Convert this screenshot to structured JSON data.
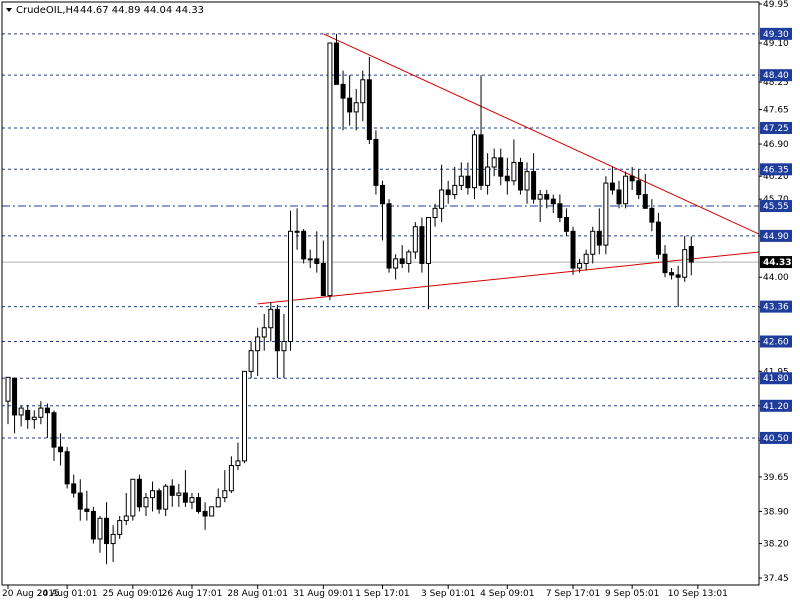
{
  "header": {
    "symbol": "CrudeOIL,H4",
    "ohlc": "44.67 44.89 44.04 44.33"
  },
  "chart_data": {
    "type": "candlestick",
    "ylim": [
      37.45,
      49.95
    ],
    "y_ticks": [
      "49.95",
      "49.10",
      "48.25",
      "47.65",
      "46.90",
      "46.20",
      "45.70",
      "44.90",
      "44.00",
      "43.35",
      "42.60",
      "41.95",
      "41.20",
      "40.45",
      "39.65",
      "38.90",
      "38.20",
      "37.45"
    ],
    "x_ticks": [
      "20 Aug 2015",
      "24 Aug 01:01",
      "25 Aug 09:01",
      "26 Aug 17:01",
      "28 Aug 01:01",
      "31 Aug 09:01",
      "1 Sep 17:01",
      "3 Sep 01:01",
      "4 Sep 09:01",
      "7 Sep 17:01",
      "9 Sep 05:01",
      "10 Sep 13:01"
    ],
    "x_tick_index": [
      0,
      9,
      19,
      28,
      38,
      48,
      57,
      67,
      76,
      86,
      95,
      105
    ],
    "levels": [
      {
        "value": 49.3,
        "label": "49.30",
        "style": "dashed"
      },
      {
        "value": 48.4,
        "label": "48.40",
        "style": "dashed"
      },
      {
        "value": 47.25,
        "label": "47.25",
        "style": "dashed"
      },
      {
        "value": 46.35,
        "label": "46.35",
        "style": "dashed"
      },
      {
        "value": 45.55,
        "label": "45.55",
        "style": "dashdot"
      },
      {
        "value": 44.9,
        "label": "44.90",
        "style": "dashed"
      },
      {
        "value": 43.36,
        "label": "43.36",
        "style": "dashed"
      },
      {
        "value": 42.6,
        "label": "42.60",
        "style": "dashed"
      },
      {
        "value": 41.8,
        "label": "41.80",
        "style": "dashed"
      },
      {
        "value": 41.2,
        "label": "41.20",
        "style": "dashed"
      },
      {
        "value": 40.5,
        "label": "40.50",
        "style": "dashed"
      }
    ],
    "current_price": {
      "value": 44.33,
      "label": "44.33"
    },
    "trendlines": [
      {
        "name": "resistance",
        "from": {
          "index": 48,
          "value": 49.3
        },
        "to": {
          "index": 118,
          "value": 44.94
        }
      },
      {
        "name": "support",
        "from": {
          "index": 38,
          "value": 43.42
        },
        "to": {
          "index": 118,
          "value": 44.55
        }
      }
    ],
    "candles": [
      {
        "o": 41.3,
        "h": 41.82,
        "l": 40.8,
        "c": 41.82
      },
      {
        "o": 41.8,
        "h": 41.82,
        "l": 40.6,
        "c": 41.0
      },
      {
        "o": 41.0,
        "h": 41.2,
        "l": 40.75,
        "c": 41.15
      },
      {
        "o": 41.1,
        "h": 41.22,
        "l": 40.7,
        "c": 40.9
      },
      {
        "o": 40.9,
        "h": 41.1,
        "l": 40.7,
        "c": 40.95
      },
      {
        "o": 40.95,
        "h": 41.3,
        "l": 40.8,
        "c": 41.15
      },
      {
        "o": 41.15,
        "h": 41.25,
        "l": 40.5,
        "c": 41.05
      },
      {
        "o": 41.05,
        "h": 41.1,
        "l": 40.0,
        "c": 40.3
      },
      {
        "o": 40.3,
        "h": 40.6,
        "l": 39.9,
        "c": 40.2
      },
      {
        "o": 40.2,
        "h": 40.3,
        "l": 39.4,
        "c": 39.5
      },
      {
        "o": 39.5,
        "h": 39.7,
        "l": 39.2,
        "c": 39.3
      },
      {
        "o": 39.3,
        "h": 39.6,
        "l": 38.7,
        "c": 38.95
      },
      {
        "o": 38.95,
        "h": 39.35,
        "l": 38.7,
        "c": 38.9
      },
      {
        "o": 38.9,
        "h": 39.0,
        "l": 38.2,
        "c": 38.3
      },
      {
        "o": 38.3,
        "h": 38.8,
        "l": 38.0,
        "c": 38.75
      },
      {
        "o": 38.75,
        "h": 39.1,
        "l": 37.75,
        "c": 38.2
      },
      {
        "o": 38.2,
        "h": 38.6,
        "l": 37.8,
        "c": 38.4
      },
      {
        "o": 38.4,
        "h": 38.8,
        "l": 38.3,
        "c": 38.7
      },
      {
        "o": 38.7,
        "h": 39.3,
        "l": 38.6,
        "c": 38.8
      },
      {
        "o": 38.8,
        "h": 39.6,
        "l": 38.7,
        "c": 39.6
      },
      {
        "o": 39.6,
        "h": 39.7,
        "l": 38.9,
        "c": 39.0
      },
      {
        "o": 39.0,
        "h": 39.3,
        "l": 38.8,
        "c": 39.2
      },
      {
        "o": 39.2,
        "h": 39.55,
        "l": 38.9,
        "c": 39.35
      },
      {
        "o": 39.35,
        "h": 39.4,
        "l": 38.85,
        "c": 38.95
      },
      {
        "o": 38.95,
        "h": 39.5,
        "l": 38.8,
        "c": 39.45
      },
      {
        "o": 39.45,
        "h": 39.6,
        "l": 39.0,
        "c": 39.25
      },
      {
        "o": 39.25,
        "h": 39.5,
        "l": 39.0,
        "c": 39.3
      },
      {
        "o": 39.3,
        "h": 39.8,
        "l": 39.0,
        "c": 39.1
      },
      {
        "o": 39.1,
        "h": 39.3,
        "l": 38.95,
        "c": 39.2
      },
      {
        "o": 39.2,
        "h": 39.3,
        "l": 38.85,
        "c": 38.9
      },
      {
        "o": 38.9,
        "h": 39.1,
        "l": 38.5,
        "c": 38.8
      },
      {
        "o": 38.8,
        "h": 39.0,
        "l": 38.8,
        "c": 39.0
      },
      {
        "o": 39.0,
        "h": 39.4,
        "l": 39.0,
        "c": 39.2
      },
      {
        "o": 39.2,
        "h": 39.8,
        "l": 39.1,
        "c": 39.35
      },
      {
        "o": 39.35,
        "h": 40.1,
        "l": 39.3,
        "c": 39.9
      },
      {
        "o": 39.9,
        "h": 40.4,
        "l": 39.8,
        "c": 40.0
      },
      {
        "o": 40.0,
        "h": 41.95,
        "l": 39.95,
        "c": 41.95
      },
      {
        "o": 41.95,
        "h": 42.6,
        "l": 41.8,
        "c": 42.4
      },
      {
        "o": 42.4,
        "h": 42.9,
        "l": 41.85,
        "c": 42.7
      },
      {
        "o": 42.7,
        "h": 43.2,
        "l": 42.4,
        "c": 42.9
      },
      {
        "o": 42.9,
        "h": 43.45,
        "l": 42.6,
        "c": 43.3
      },
      {
        "o": 43.3,
        "h": 43.4,
        "l": 41.8,
        "c": 42.4
      },
      {
        "o": 42.4,
        "h": 43.2,
        "l": 41.8,
        "c": 42.6
      },
      {
        "o": 42.6,
        "h": 45.45,
        "l": 42.4,
        "c": 45.0
      },
      {
        "o": 45.0,
        "h": 45.5,
        "l": 44.6,
        "c": 45.0
      },
      {
        "o": 45.0,
        "h": 45.05,
        "l": 44.3,
        "c": 44.4
      },
      {
        "o": 44.4,
        "h": 44.6,
        "l": 44.2,
        "c": 44.4
      },
      {
        "o": 44.4,
        "h": 45.0,
        "l": 44.1,
        "c": 44.3
      },
      {
        "o": 44.3,
        "h": 44.8,
        "l": 43.6,
        "c": 43.6
      },
      {
        "o": 43.6,
        "h": 49.1,
        "l": 43.5,
        "c": 49.1
      },
      {
        "o": 49.1,
        "h": 49.3,
        "l": 48.2,
        "c": 48.2
      },
      {
        "o": 48.2,
        "h": 48.5,
        "l": 47.2,
        "c": 47.9
      },
      {
        "o": 47.9,
        "h": 48.4,
        "l": 47.3,
        "c": 47.6
      },
      {
        "o": 47.6,
        "h": 48.1,
        "l": 47.2,
        "c": 47.8
      },
      {
        "o": 47.8,
        "h": 48.5,
        "l": 47.4,
        "c": 48.3
      },
      {
        "o": 48.3,
        "h": 48.8,
        "l": 46.9,
        "c": 47.0
      },
      {
        "o": 47.0,
        "h": 47.2,
        "l": 45.8,
        "c": 46.0
      },
      {
        "o": 46.0,
        "h": 46.1,
        "l": 44.8,
        "c": 45.6
      },
      {
        "o": 45.6,
        "h": 45.7,
        "l": 44.1,
        "c": 44.2
      },
      {
        "o": 44.2,
        "h": 44.5,
        "l": 43.95,
        "c": 44.4
      },
      {
        "o": 44.4,
        "h": 44.7,
        "l": 44.2,
        "c": 44.3
      },
      {
        "o": 44.3,
        "h": 44.6,
        "l": 44.1,
        "c": 44.55
      },
      {
        "o": 44.55,
        "h": 45.2,
        "l": 44.4,
        "c": 45.1
      },
      {
        "o": 45.1,
        "h": 45.3,
        "l": 44.1,
        "c": 44.3
      },
      {
        "o": 44.3,
        "h": 45.3,
        "l": 43.3,
        "c": 45.3
      },
      {
        "o": 45.3,
        "h": 45.6,
        "l": 45.1,
        "c": 45.5
      },
      {
        "o": 45.5,
        "h": 46.45,
        "l": 45.2,
        "c": 45.9
      },
      {
        "o": 45.9,
        "h": 46.1,
        "l": 45.6,
        "c": 45.8
      },
      {
        "o": 45.8,
        "h": 46.4,
        "l": 45.7,
        "c": 46.0
      },
      {
        "o": 46.0,
        "h": 46.5,
        "l": 45.9,
        "c": 46.2
      },
      {
        "o": 46.2,
        "h": 46.5,
        "l": 45.8,
        "c": 45.95
      },
      {
        "o": 45.95,
        "h": 47.2,
        "l": 45.7,
        "c": 47.1
      },
      {
        "o": 47.1,
        "h": 48.4,
        "l": 45.9,
        "c": 46.0
      },
      {
        "o": 46.0,
        "h": 46.7,
        "l": 45.8,
        "c": 46.4
      },
      {
        "o": 46.4,
        "h": 46.8,
        "l": 46.2,
        "c": 46.6
      },
      {
        "o": 46.6,
        "h": 46.8,
        "l": 46.0,
        "c": 46.2
      },
      {
        "o": 46.2,
        "h": 46.6,
        "l": 45.8,
        "c": 46.1
      },
      {
        "o": 46.1,
        "h": 47.0,
        "l": 46.0,
        "c": 46.5
      },
      {
        "o": 46.5,
        "h": 46.6,
        "l": 45.8,
        "c": 45.9
      },
      {
        "o": 45.9,
        "h": 46.5,
        "l": 45.6,
        "c": 46.3
      },
      {
        "o": 46.3,
        "h": 46.7,
        "l": 45.6,
        "c": 45.7
      },
      {
        "o": 45.7,
        "h": 45.9,
        "l": 45.2,
        "c": 45.8
      },
      {
        "o": 45.8,
        "h": 45.9,
        "l": 45.5,
        "c": 45.7
      },
      {
        "o": 45.7,
        "h": 45.8,
        "l": 45.4,
        "c": 45.6
      },
      {
        "o": 45.6,
        "h": 45.8,
        "l": 45.2,
        "c": 45.3
      },
      {
        "o": 45.3,
        "h": 45.5,
        "l": 44.9,
        "c": 45.0
      },
      {
        "o": 45.0,
        "h": 45.1,
        "l": 44.05,
        "c": 44.2
      },
      {
        "o": 44.2,
        "h": 44.4,
        "l": 44.1,
        "c": 44.3
      },
      {
        "o": 44.3,
        "h": 44.6,
        "l": 44.15,
        "c": 44.5
      },
      {
        "o": 44.5,
        "h": 45.1,
        "l": 44.3,
        "c": 45.0
      },
      {
        "o": 45.0,
        "h": 45.5,
        "l": 44.5,
        "c": 44.7
      },
      {
        "o": 44.7,
        "h": 46.2,
        "l": 44.5,
        "c": 46.05
      },
      {
        "o": 46.05,
        "h": 46.4,
        "l": 45.8,
        "c": 45.9
      },
      {
        "o": 45.9,
        "h": 46.1,
        "l": 45.5,
        "c": 45.6
      },
      {
        "o": 45.6,
        "h": 46.3,
        "l": 45.5,
        "c": 46.2
      },
      {
        "o": 46.2,
        "h": 46.4,
        "l": 45.9,
        "c": 46.1
      },
      {
        "o": 46.1,
        "h": 46.35,
        "l": 45.7,
        "c": 45.8
      },
      {
        "o": 45.8,
        "h": 46.25,
        "l": 45.6,
        "c": 45.5
      },
      {
        "o": 45.5,
        "h": 45.7,
        "l": 45.0,
        "c": 45.2
      },
      {
        "o": 45.2,
        "h": 45.4,
        "l": 44.4,
        "c": 44.5
      },
      {
        "o": 44.5,
        "h": 44.7,
        "l": 44.0,
        "c": 44.1
      },
      {
        "o": 44.1,
        "h": 44.2,
        "l": 43.95,
        "c": 44.05
      },
      {
        "o": 44.05,
        "h": 44.25,
        "l": 43.35,
        "c": 44.0
      },
      {
        "o": 44.0,
        "h": 44.9,
        "l": 43.9,
        "c": 44.6
      },
      {
        "o": 44.67,
        "h": 44.89,
        "l": 44.04,
        "c": 44.33
      }
    ]
  }
}
